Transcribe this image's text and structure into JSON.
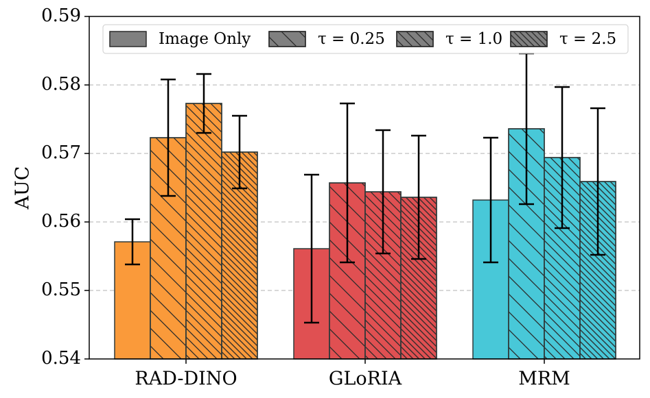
{
  "chart_data": {
    "type": "bar",
    "ylabel": "AUC",
    "categories": [
      "RAD-DINO",
      "GLoRIA",
      "MRM"
    ],
    "category_colors": [
      "#fa9a3a",
      "#e05052",
      "#48c8d8"
    ],
    "series": [
      {
        "name": "Image Only",
        "color": "#808080",
        "hatch": "",
        "values": [
          0.5571,
          0.5561,
          0.5632
        ],
        "errors": [
          0.0033,
          0.0108,
          0.0091
        ]
      },
      {
        "name": "τ = 0.25",
        "color": "#808080",
        "hatch": "\\",
        "values": [
          0.5723,
          0.5657,
          0.5736
        ],
        "errors": [
          0.0085,
          0.0116,
          0.011
        ]
      },
      {
        "name": "τ = 1.0",
        "color": "#808080",
        "hatch": "\\\\",
        "values": [
          0.5773,
          0.5644,
          0.5694
        ],
        "errors": [
          0.0043,
          0.009,
          0.0103
        ]
      },
      {
        "name": "τ = 2.5",
        "color": "#808080",
        "hatch": "\\\\\\",
        "values": [
          0.5702,
          0.5636,
          0.5659
        ],
        "errors": [
          0.0053,
          0.009,
          0.0107
        ]
      }
    ],
    "ylim": [
      0.54,
      0.59
    ],
    "yticks": [
      0.54,
      0.55,
      0.56,
      0.57,
      0.58,
      0.59
    ],
    "grid": true,
    "legend": "top"
  }
}
